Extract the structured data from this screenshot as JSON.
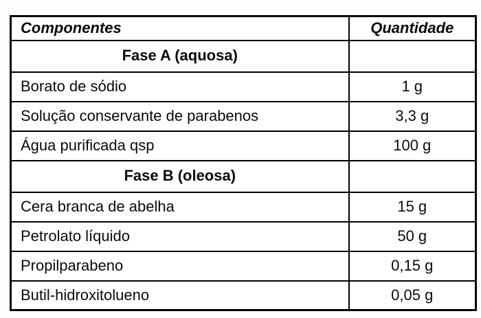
{
  "table": {
    "columns": [
      {
        "label": "Componentes"
      },
      {
        "label": "Quantidade"
      }
    ],
    "rows": [
      {
        "type": "section",
        "label": "Fase A (aquosa)",
        "quantity": ""
      },
      {
        "type": "item",
        "component": "Borato de sódio",
        "quantity": "1 g"
      },
      {
        "type": "item",
        "component": "Solução conservante de parabenos",
        "quantity": "3,3 g"
      },
      {
        "type": "item",
        "component": "Água purificada qsp",
        "quantity": "100 g"
      },
      {
        "type": "section",
        "label": "Fase B (oleosa)",
        "quantity": ""
      },
      {
        "type": "item",
        "component": "Cera branca de abelha",
        "quantity": "15 g"
      },
      {
        "type": "item",
        "component": "Petrolato líquido",
        "quantity": "50 g"
      },
      {
        "type": "item",
        "component": "Propilparabeno",
        "quantity": "0,15 g"
      },
      {
        "type": "item",
        "component": "Butil-hidroxitolueno",
        "quantity": "0,05 g"
      }
    ],
    "colors": {
      "border": "#000000",
      "text": "#0a0a0a",
      "background": "#ffffff"
    }
  }
}
